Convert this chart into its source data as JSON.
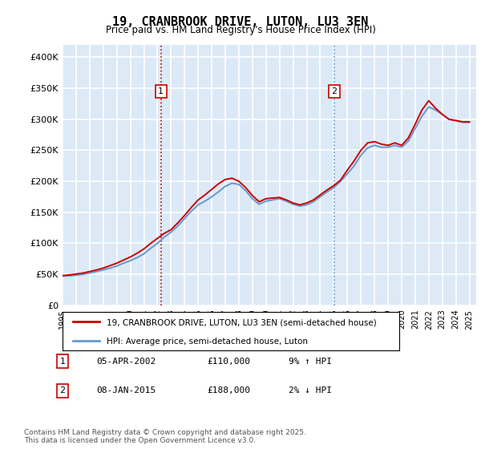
{
  "title": "19, CRANBROOK DRIVE, LUTON, LU3 3EN",
  "subtitle": "Price paid vs. HM Land Registry's House Price Index (HPI)",
  "ylabel_ticks": [
    "£0",
    "£50K",
    "£100K",
    "£150K",
    "£200K",
    "£250K",
    "£300K",
    "£350K",
    "£400K"
  ],
  "ytick_vals": [
    0,
    50000,
    100000,
    150000,
    200000,
    250000,
    300000,
    350000,
    400000
  ],
  "ylim": [
    0,
    420000
  ],
  "xlim_start": 1995.0,
  "xlim_end": 2025.5,
  "background_color": "#dce9f7",
  "plot_bg_color": "#dce9f7",
  "grid_color": "#ffffff",
  "red_line_color": "#cc0000",
  "blue_line_color": "#6699cc",
  "marker1_year": 2002.26,
  "marker2_year": 2015.03,
  "vline_color": "#cc0000",
  "vline_style": ":",
  "marker1_label": "1",
  "marker2_label": "2",
  "marker1_y": 345000,
  "marker2_y": 345000,
  "legend_entries": [
    "19, CRANBROOK DRIVE, LUTON, LU3 3EN (semi-detached house)",
    "HPI: Average price, semi-detached house, Luton"
  ],
  "table_rows": [
    {
      "num": "1",
      "date": "05-APR-2002",
      "price": "£110,000",
      "hpi": "9% ↑ HPI"
    },
    {
      "num": "2",
      "date": "08-JAN-2015",
      "price": "£188,000",
      "hpi": "2% ↓ HPI"
    }
  ],
  "footer": "Contains HM Land Registry data © Crown copyright and database right 2025.\nThis data is licensed under the Open Government Licence v3.0.",
  "hpi_years": [
    1995,
    1995.5,
    1996,
    1996.5,
    1997,
    1997.5,
    1998,
    1998.5,
    1999,
    1999.5,
    2000,
    2000.5,
    2001,
    2001.5,
    2002,
    2002.5,
    2003,
    2003.5,
    2004,
    2004.5,
    2005,
    2005.5,
    2006,
    2006.5,
    2007,
    2007.5,
    2008,
    2008.5,
    2009,
    2009.5,
    2010,
    2010.5,
    2011,
    2011.5,
    2012,
    2012.5,
    2013,
    2013.5,
    2014,
    2014.5,
    2015,
    2015.5,
    2016,
    2016.5,
    2017,
    2017.5,
    2018,
    2018.5,
    2019,
    2019.5,
    2020,
    2020.5,
    2021,
    2021.5,
    2022,
    2022.5,
    2023,
    2023.5,
    2024,
    2024.5,
    2025
  ],
  "hpi_values": [
    47000,
    47500,
    48500,
    50000,
    52000,
    54500,
    57000,
    60000,
    63500,
    68000,
    72000,
    77000,
    83000,
    92000,
    100000,
    110000,
    118000,
    128000,
    140000,
    152000,
    162000,
    168000,
    175000,
    183000,
    192000,
    197000,
    195000,
    185000,
    172000,
    163000,
    168000,
    170000,
    172000,
    168000,
    163000,
    160000,
    162000,
    167000,
    175000,
    183000,
    190000,
    200000,
    212000,
    225000,
    242000,
    254000,
    258000,
    255000,
    255000,
    258000,
    255000,
    265000,
    285000,
    305000,
    320000,
    315000,
    308000,
    300000,
    298000,
    295000,
    295000
  ],
  "red_years": [
    1995,
    1995.5,
    1996,
    1996.5,
    1997,
    1997.5,
    1998,
    1998.5,
    1999,
    1999.5,
    2000,
    2000.5,
    2001,
    2001.5,
    2002,
    2002.5,
    2003,
    2003.5,
    2004,
    2004.5,
    2005,
    2005.5,
    2006,
    2006.5,
    2007,
    2007.5,
    2008,
    2008.5,
    2009,
    2009.5,
    2010,
    2010.5,
    2011,
    2011.5,
    2012,
    2012.5,
    2013,
    2013.5,
    2014,
    2014.5,
    2015,
    2015.5,
    2016,
    2016.5,
    2017,
    2017.5,
    2018,
    2018.5,
    2019,
    2019.5,
    2020,
    2020.5,
    2021,
    2021.5,
    2022,
    2022.5,
    2023,
    2023.5,
    2024,
    2024.5,
    2025
  ],
  "red_values": [
    48000,
    49000,
    50500,
    52000,
    54500,
    57000,
    60000,
    64000,
    68000,
    73000,
    78000,
    84000,
    91000,
    100000,
    108000,
    116000,
    122000,
    133000,
    145000,
    158000,
    170000,
    178000,
    187000,
    196000,
    203000,
    205000,
    200000,
    190000,
    177000,
    167000,
    172000,
    173000,
    174000,
    170000,
    165000,
    162000,
    165000,
    170000,
    178000,
    186000,
    193000,
    202000,
    218000,
    233000,
    250000,
    262000,
    264000,
    260000,
    258000,
    262000,
    258000,
    270000,
    292000,
    315000,
    330000,
    318000,
    308000,
    300000,
    298000,
    296000,
    296000
  ]
}
